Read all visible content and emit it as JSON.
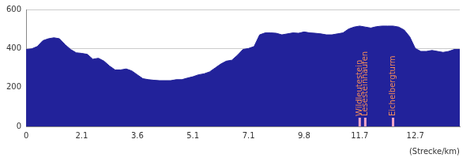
{
  "chart_data": {
    "type": "area",
    "x_label": "(Strecke/km)",
    "categories": [
      "0",
      null,
      null,
      null,
      null,
      null,
      null,
      null,
      null,
      null,
      "2.1",
      null,
      null,
      null,
      null,
      null,
      null,
      null,
      null,
      null,
      "3.6",
      null,
      null,
      null,
      null,
      null,
      null,
      null,
      null,
      null,
      "5.1",
      null,
      null,
      null,
      null,
      null,
      null,
      null,
      null,
      null,
      "7.1",
      null,
      null,
      null,
      null,
      null,
      null,
      null,
      null,
      null,
      "9.8",
      null,
      null,
      null,
      null,
      null,
      null,
      null,
      null,
      null,
      "11.7",
      null,
      null,
      null,
      null,
      null,
      null,
      null,
      null,
      null,
      "12.7",
      null,
      null,
      null,
      null,
      null,
      null,
      null,
      null
    ],
    "values": [
      395,
      398,
      410,
      440,
      450,
      455,
      450,
      420,
      395,
      378,
      375,
      370,
      345,
      350,
      335,
      310,
      290,
      290,
      295,
      285,
      265,
      245,
      240,
      237,
      235,
      235,
      235,
      240,
      240,
      248,
      255,
      265,
      270,
      280,
      300,
      320,
      335,
      340,
      365,
      395,
      400,
      410,
      470,
      480,
      480,
      478,
      470,
      475,
      480,
      478,
      485,
      480,
      478,
      475,
      470,
      470,
      475,
      480,
      500,
      510,
      515,
      510,
      505,
      512,
      515,
      515,
      515,
      510,
      495,
      460,
      400,
      385,
      385,
      390,
      385,
      380,
      385,
      395,
      395
    ],
    "color": "#22229a",
    "ylim": [
      0,
      600
    ],
    "yticks": [
      0,
      200,
      400,
      600
    ],
    "grid": true,
    "annotations": [
      {
        "text": "Wildleutestein",
        "index": 60
      },
      {
        "text": "Lesesteinhaufen",
        "index": 61
      },
      {
        "text": "Eichelbergturm",
        "index": 66
      }
    ]
  }
}
